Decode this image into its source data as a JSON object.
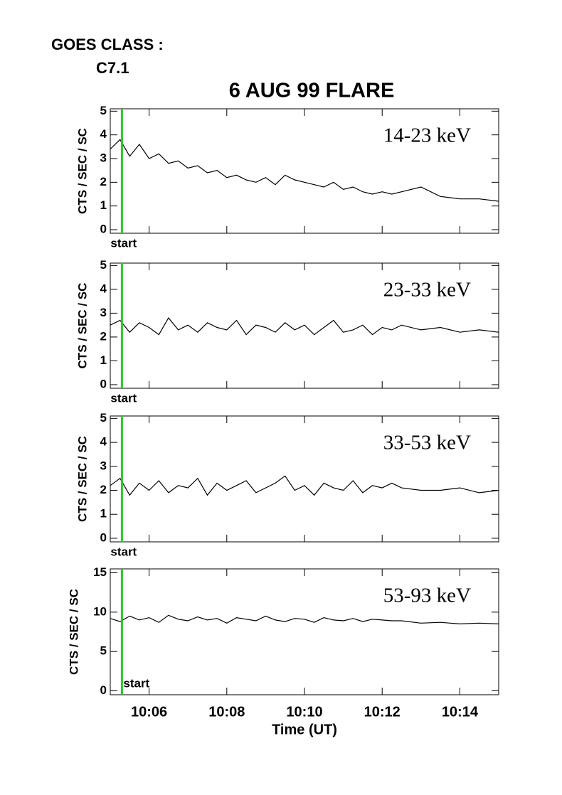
{
  "goes_class_label": "GOES CLASS :",
  "goes_class": "C7.1",
  "chart_data": [
    {
      "type": "line",
      "title": "6 AUG 99 FLARE",
      "band": "14-23 keV",
      "ylabel": "CTS / SEC / SC",
      "ylim": [
        -0.15,
        5.1
      ],
      "yticks": [
        0,
        1,
        2,
        3,
        4,
        5
      ],
      "xlim": [
        "10:05",
        "10:15"
      ],
      "color": "#000000",
      "start_marker": {
        "x": "10:05:18",
        "label": "start",
        "color": "#22cc22"
      },
      "x": [
        "10:05:00",
        "10:05:15",
        "10:05:30",
        "10:05:45",
        "10:06:00",
        "10:06:15",
        "10:06:30",
        "10:06:45",
        "10:07:00",
        "10:07:15",
        "10:07:30",
        "10:07:45",
        "10:08:00",
        "10:08:15",
        "10:08:30",
        "10:08:45",
        "10:09:00",
        "10:09:15",
        "10:09:30",
        "10:09:45",
        "10:10:00",
        "10:10:15",
        "10:10:30",
        "10:10:45",
        "10:11:00",
        "10:11:15",
        "10:11:30",
        "10:11:45",
        "10:12:00",
        "10:12:15",
        "10:12:30",
        "10:13:00",
        "10:13:30",
        "10:14:00",
        "10:14:30",
        "10:15:00"
      ],
      "values": [
        3.4,
        3.8,
        3.1,
        3.6,
        3.0,
        3.2,
        2.8,
        2.9,
        2.6,
        2.7,
        2.4,
        2.5,
        2.2,
        2.3,
        2.1,
        2.0,
        2.2,
        1.9,
        2.3,
        2.1,
        2.0,
        1.9,
        1.8,
        2.0,
        1.7,
        1.8,
        1.6,
        1.5,
        1.6,
        1.5,
        1.6,
        1.8,
        1.4,
        1.3,
        1.3,
        1.2
      ]
    },
    {
      "type": "line",
      "band": "23-33 keV",
      "ylabel": "CTS / SEC / SC",
      "ylim": [
        -0.15,
        5.1
      ],
      "yticks": [
        0,
        1,
        2,
        3,
        4,
        5
      ],
      "xlim": [
        "10:05",
        "10:15"
      ],
      "color": "#000000",
      "start_marker": {
        "x": "10:05:18",
        "label": "start",
        "color": "#22cc22"
      },
      "x": [
        "10:05:00",
        "10:05:15",
        "10:05:30",
        "10:05:45",
        "10:06:00",
        "10:06:15",
        "10:06:30",
        "10:06:45",
        "10:07:00",
        "10:07:15",
        "10:07:30",
        "10:07:45",
        "10:08:00",
        "10:08:15",
        "10:08:30",
        "10:08:45",
        "10:09:00",
        "10:09:15",
        "10:09:30",
        "10:09:45",
        "10:10:00",
        "10:10:15",
        "10:10:30",
        "10:10:45",
        "10:11:00",
        "10:11:15",
        "10:11:30",
        "10:11:45",
        "10:12:00",
        "10:12:15",
        "10:12:30",
        "10:13:00",
        "10:13:30",
        "10:14:00",
        "10:14:30",
        "10:15:00"
      ],
      "values": [
        2.5,
        2.7,
        2.2,
        2.6,
        2.4,
        2.1,
        2.8,
        2.3,
        2.5,
        2.2,
        2.6,
        2.4,
        2.3,
        2.7,
        2.1,
        2.5,
        2.4,
        2.2,
        2.6,
        2.3,
        2.5,
        2.1,
        2.4,
        2.7,
        2.2,
        2.3,
        2.5,
        2.1,
        2.4,
        2.3,
        2.5,
        2.3,
        2.4,
        2.2,
        2.3,
        2.2
      ]
    },
    {
      "type": "line",
      "band": "33-53 keV",
      "ylabel": "CTS / SEC / SC",
      "ylim": [
        -0.15,
        5.1
      ],
      "yticks": [
        0,
        1,
        2,
        3,
        4,
        5
      ],
      "xlim": [
        "10:05",
        "10:15"
      ],
      "color": "#000000",
      "start_marker": {
        "x": "10:05:18",
        "label": "start",
        "color": "#22cc22"
      },
      "x": [
        "10:05:00",
        "10:05:15",
        "10:05:30",
        "10:05:45",
        "10:06:00",
        "10:06:15",
        "10:06:30",
        "10:06:45",
        "10:07:00",
        "10:07:15",
        "10:07:30",
        "10:07:45",
        "10:08:00",
        "10:08:15",
        "10:08:30",
        "10:08:45",
        "10:09:00",
        "10:09:15",
        "10:09:30",
        "10:09:45",
        "10:10:00",
        "10:10:15",
        "10:10:30",
        "10:10:45",
        "10:11:00",
        "10:11:15",
        "10:11:30",
        "10:11:45",
        "10:12:00",
        "10:12:15",
        "10:12:30",
        "10:13:00",
        "10:13:30",
        "10:14:00",
        "10:14:30",
        "10:15:00"
      ],
      "values": [
        2.2,
        2.5,
        1.8,
        2.3,
        2.0,
        2.4,
        1.9,
        2.2,
        2.1,
        2.5,
        1.8,
        2.3,
        2.0,
        2.2,
        2.4,
        1.9,
        2.1,
        2.3,
        2.6,
        2.0,
        2.2,
        1.8,
        2.3,
        2.1,
        2.0,
        2.4,
        1.9,
        2.2,
        2.1,
        2.3,
        2.1,
        2.0,
        2.0,
        2.1,
        1.9,
        2.0
      ]
    },
    {
      "type": "line",
      "band": "53-93 keV",
      "ylabel": "CTS / SEC / SC",
      "xlabel": "Time (UT)",
      "ylim": [
        -0.5,
        15.5
      ],
      "yticks": [
        0,
        5,
        10,
        15
      ],
      "xlim": [
        "10:05",
        "10:15"
      ],
      "color": "#000000",
      "xticks": [
        {
          "value": "10:06",
          "label": "10:06"
        },
        {
          "value": "10:08",
          "label": "10:08"
        },
        {
          "value": "10:10",
          "label": "10:10"
        },
        {
          "value": "10:12",
          "label": "10:12"
        },
        {
          "value": "10:14",
          "label": "10:14"
        }
      ],
      "start_marker": {
        "x": "10:05:18",
        "label": "start",
        "color": "#22cc22"
      },
      "x": [
        "10:05:00",
        "10:05:15",
        "10:05:30",
        "10:05:45",
        "10:06:00",
        "10:06:15",
        "10:06:30",
        "10:06:45",
        "10:07:00",
        "10:07:15",
        "10:07:30",
        "10:07:45",
        "10:08:00",
        "10:08:15",
        "10:08:30",
        "10:08:45",
        "10:09:00",
        "10:09:15",
        "10:09:30",
        "10:09:45",
        "10:10:00",
        "10:10:15",
        "10:10:30",
        "10:10:45",
        "10:11:00",
        "10:11:15",
        "10:11:30",
        "10:11:45",
        "10:12:00",
        "10:12:15",
        "10:12:30",
        "10:13:00",
        "10:13:30",
        "10:14:00",
        "10:14:30",
        "10:15:00"
      ],
      "values": [
        9.2,
        8.8,
        9.5,
        9.0,
        9.3,
        8.7,
        9.6,
        9.1,
        8.9,
        9.4,
        9.0,
        9.2,
        8.6,
        9.3,
        9.1,
        8.9,
        9.5,
        9.0,
        8.8,
        9.2,
        9.1,
        8.7,
        9.3,
        9.0,
        8.9,
        9.2,
        8.8,
        9.1,
        9.0,
        8.9,
        8.9,
        8.6,
        8.7,
        8.5,
        8.6,
        8.5
      ]
    }
  ]
}
